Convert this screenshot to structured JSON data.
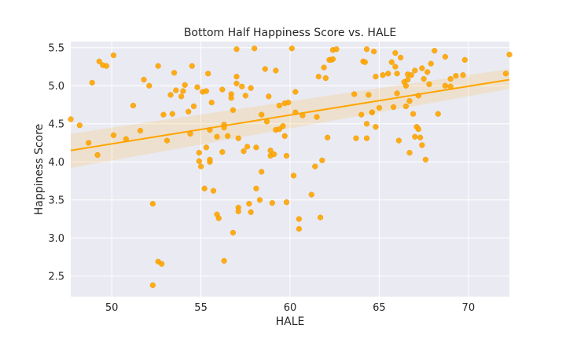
{
  "chart_data": {
    "type": "scatter",
    "title": "Bottom Half Happiness Score vs. HALE",
    "xlabel": "HALE",
    "ylabel": "Happiness Score",
    "xlim": [
      47.7,
      72.3
    ],
    "ylim": [
      2.23,
      5.58
    ],
    "xticks": [
      50,
      55,
      60,
      65,
      70
    ],
    "yticks": [
      2.5,
      3.0,
      3.5,
      4.0,
      4.5,
      5.0,
      5.5
    ],
    "grid": true,
    "point_color": "#ffa500",
    "background_color": "#eaeaf2",
    "grid_color": "#ffffff",
    "regression": {
      "x": [
        47.7,
        72.3
      ],
      "y": [
        4.15,
        5.08
      ],
      "ci_lower": [
        3.92,
        4.96
      ],
      "ci_upper": [
        4.37,
        5.22
      ]
    },
    "points": [
      [
        47.7,
        4.56
      ],
      [
        48.2,
        4.48
      ],
      [
        48.7,
        4.25
      ],
      [
        48.9,
        5.04
      ],
      [
        49.2,
        4.09
      ],
      [
        49.3,
        5.32
      ],
      [
        49.5,
        5.27
      ],
      [
        49.7,
        5.26
      ],
      [
        50.1,
        5.4
      ],
      [
        50.1,
        4.35
      ],
      [
        50.8,
        4.3
      ],
      [
        51.2,
        4.74
      ],
      [
        51.6,
        4.41
      ],
      [
        51.8,
        5.08
      ],
      [
        52.1,
        5.0
      ],
      [
        52.3,
        2.38
      ],
      [
        52.3,
        3.45
      ],
      [
        52.6,
        5.26
      ],
      [
        52.6,
        2.69
      ],
      [
        52.8,
        2.66
      ],
      [
        52.9,
        4.62
      ],
      [
        53.1,
        4.28
      ],
      [
        53.3,
        4.88
      ],
      [
        53.4,
        4.63
      ],
      [
        53.5,
        5.17
      ],
      [
        53.6,
        4.94
      ],
      [
        53.9,
        4.86
      ],
      [
        54.0,
        4.93
      ],
      [
        54.1,
        5.01
      ],
      [
        54.3,
        4.66
      ],
      [
        54.4,
        4.37
      ],
      [
        54.5,
        5.26
      ],
      [
        54.6,
        4.73
      ],
      [
        54.8,
        4.98
      ],
      [
        54.9,
        4.12
      ],
      [
        54.9,
        4.01
      ],
      [
        55.0,
        3.94
      ],
      [
        55.1,
        4.92
      ],
      [
        55.2,
        3.65
      ],
      [
        55.3,
        4.93
      ],
      [
        55.3,
        4.19
      ],
      [
        55.5,
        4.42
      ],
      [
        55.6,
        4.78
      ],
      [
        55.4,
        5.16
      ],
      [
        55.5,
        4.0
      ],
      [
        55.5,
        4.03
      ],
      [
        55.7,
        3.62
      ],
      [
        55.9,
        4.33
      ],
      [
        55.9,
        3.31
      ],
      [
        56.0,
        3.26
      ],
      [
        56.2,
        4.95
      ],
      [
        56.3,
        4.49
      ],
      [
        56.3,
        4.45
      ],
      [
        56.2,
        4.13
      ],
      [
        56.3,
        2.7
      ],
      [
        56.5,
        4.34
      ],
      [
        56.7,
        4.89
      ],
      [
        56.7,
        4.84
      ],
      [
        56.8,
        3.07
      ],
      [
        56.8,
        4.68
      ],
      [
        57.0,
        5.48
      ],
      [
        57.0,
        5.12
      ],
      [
        57.0,
        5.03
      ],
      [
        57.1,
        4.31
      ],
      [
        57.1,
        3.4
      ],
      [
        57.1,
        3.35
      ],
      [
        57.3,
        4.99
      ],
      [
        57.5,
        4.87
      ],
      [
        57.4,
        4.14
      ],
      [
        57.6,
        4.2
      ],
      [
        57.7,
        3.45
      ],
      [
        57.8,
        3.34
      ],
      [
        57.8,
        4.97
      ],
      [
        58.0,
        5.49
      ],
      [
        58.1,
        3.65
      ],
      [
        58.1,
        4.19
      ],
      [
        58.3,
        3.5
      ],
      [
        58.4,
        3.87
      ],
      [
        58.4,
        4.62
      ],
      [
        58.6,
        5.22
      ],
      [
        58.7,
        4.53
      ],
      [
        58.8,
        4.86
      ],
      [
        58.9,
        4.15
      ],
      [
        58.9,
        4.08
      ],
      [
        59.0,
        3.46
      ],
      [
        59.1,
        4.1
      ],
      [
        59.2,
        5.2
      ],
      [
        59.2,
        4.42
      ],
      [
        59.4,
        4.74
      ],
      [
        59.4,
        4.43
      ],
      [
        59.6,
        4.47
      ],
      [
        59.7,
        4.34
      ],
      [
        59.8,
        4.08
      ],
      [
        59.7,
        4.77
      ],
      [
        59.8,
        3.47
      ],
      [
        59.9,
        4.78
      ],
      [
        60.1,
        5.49
      ],
      [
        60.2,
        3.82
      ],
      [
        60.3,
        4.65
      ],
      [
        60.3,
        4.92
      ],
      [
        60.5,
        3.25
      ],
      [
        60.5,
        3.12
      ],
      [
        60.7,
        4.61
      ],
      [
        61.2,
        3.57
      ],
      [
        61.4,
        3.94
      ],
      [
        61.5,
        4.59
      ],
      [
        61.6,
        5.12
      ],
      [
        61.7,
        3.27
      ],
      [
        61.8,
        4.02
      ],
      [
        61.9,
        5.24
      ],
      [
        62.0,
        5.1
      ],
      [
        62.1,
        4.32
      ],
      [
        62.2,
        5.34
      ],
      [
        62.3,
        5.34
      ],
      [
        62.4,
        5.35
      ],
      [
        62.4,
        5.47
      ],
      [
        62.6,
        5.48
      ],
      [
        63.6,
        4.89
      ],
      [
        63.7,
        4.31
      ],
      [
        64.0,
        4.62
      ],
      [
        64.1,
        5.32
      ],
      [
        64.2,
        5.31
      ],
      [
        64.3,
        5.48
      ],
      [
        64.3,
        4.31
      ],
      [
        64.3,
        4.5
      ],
      [
        64.4,
        4.88
      ],
      [
        64.6,
        4.65
      ],
      [
        64.6,
        4.65
      ],
      [
        64.7,
        5.45
      ],
      [
        64.8,
        4.46
      ],
      [
        64.8,
        5.12
      ],
      [
        65.0,
        4.71
      ],
      [
        65.2,
        5.14
      ],
      [
        65.5,
        5.16
      ],
      [
        65.7,
        5.31
      ],
      [
        65.8,
        4.72
      ],
      [
        65.9,
        5.25
      ],
      [
        65.9,
        5.43
      ],
      [
        66.0,
        4.9
      ],
      [
        66.0,
        5.16
      ],
      [
        66.1,
        4.28
      ],
      [
        66.2,
        5.37
      ],
      [
        66.4,
        5.05
      ],
      [
        66.5,
        4.73
      ],
      [
        66.5,
        5.0
      ],
      [
        66.6,
        5.15
      ],
      [
        66.6,
        5.08
      ],
      [
        66.7,
        4.12
      ],
      [
        66.7,
        4.8
      ],
      [
        66.8,
        5.14
      ],
      [
        66.9,
        4.63
      ],
      [
        67.0,
        5.2
      ],
      [
        67.0,
        4.33
      ],
      [
        67.1,
        4.46
      ],
      [
        67.2,
        4.43
      ],
      [
        67.2,
        4.87
      ],
      [
        67.3,
        4.32
      ],
      [
        67.4,
        4.22
      ],
      [
        67.4,
        5.23
      ],
      [
        67.5,
        5.09
      ],
      [
        67.6,
        4.03
      ],
      [
        67.7,
        5.18
      ],
      [
        67.8,
        5.02
      ],
      [
        67.9,
        5.29
      ],
      [
        68.1,
        5.46
      ],
      [
        68.3,
        4.63
      ],
      [
        68.7,
        5.38
      ],
      [
        68.7,
        5.0
      ],
      [
        69.0,
        4.99
      ],
      [
        69.0,
        5.09
      ],
      [
        69.3,
        5.13
      ],
      [
        69.7,
        5.14
      ],
      [
        69.8,
        5.34
      ],
      [
        72.1,
        5.16
      ],
      [
        72.3,
        5.41
      ]
    ]
  }
}
